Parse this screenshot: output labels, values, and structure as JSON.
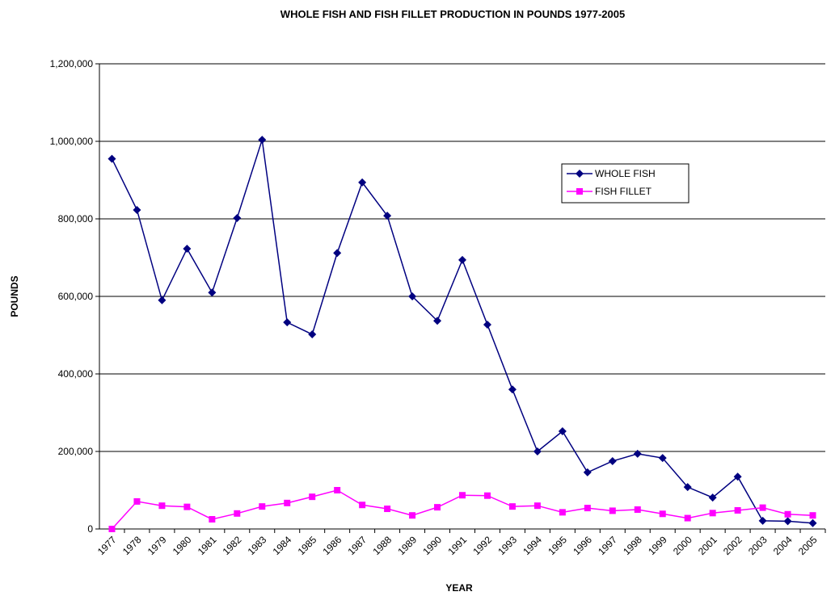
{
  "chart_data": {
    "type": "line",
    "title": "WHOLE FISH AND FISH FILLET PRODUCTION IN POUNDS 1977-2005",
    "x_label": "YEAR",
    "y_label": "POUNDS",
    "categories": [
      "1977",
      "1978",
      "1979",
      "1980",
      "1981",
      "1982",
      "1983",
      "1984",
      "1985",
      "1986",
      "1987",
      "1988",
      "1989",
      "1990",
      "1991",
      "1992",
      "1993",
      "1994",
      "1995",
      "1996",
      "1997",
      "1998",
      "1999",
      "2000",
      "2001",
      "2002",
      "2003",
      "2004",
      "2005"
    ],
    "series": [
      {
        "name": "WHOLE FISH",
        "color": "#000080",
        "marker": "diamond",
        "values": [
          955000,
          823000,
          590000,
          723000,
          610000,
          802000,
          1004000,
          533000,
          502000,
          712000,
          894000,
          808000,
          600000,
          537000,
          694000,
          527000,
          360000,
          200000,
          252000,
          146000,
          175000,
          194000,
          183000,
          108000,
          81000,
          135000,
          21000,
          20000,
          15000
        ]
      },
      {
        "name": "FISH FILLET",
        "color": "#ff00ff",
        "marker": "square",
        "values": [
          0,
          71000,
          60000,
          57000,
          25000,
          40000,
          58000,
          67000,
          83000,
          100000,
          62000,
          52000,
          35000,
          56000,
          87000,
          86000,
          58000,
          60000,
          43000,
          54000,
          47000,
          50000,
          39000,
          28000,
          41000,
          48000,
          55000,
          38000,
          35000
        ]
      }
    ],
    "ylim": [
      0,
      1200000
    ],
    "yticks": [
      0,
      {
        "value": 200000,
        "label": "200,000"
      },
      {
        "value": 400000,
        "label": "400,000"
      },
      {
        "value": 600000,
        "label": "600,000"
      },
      {
        "value": 800000,
        "label": "800,000"
      },
      {
        "value": 1000000,
        "label": "1,000,000"
      },
      {
        "value": 1200000,
        "label": "1,200,000"
      }
    ],
    "grid": true,
    "legend": "upper-right"
  }
}
